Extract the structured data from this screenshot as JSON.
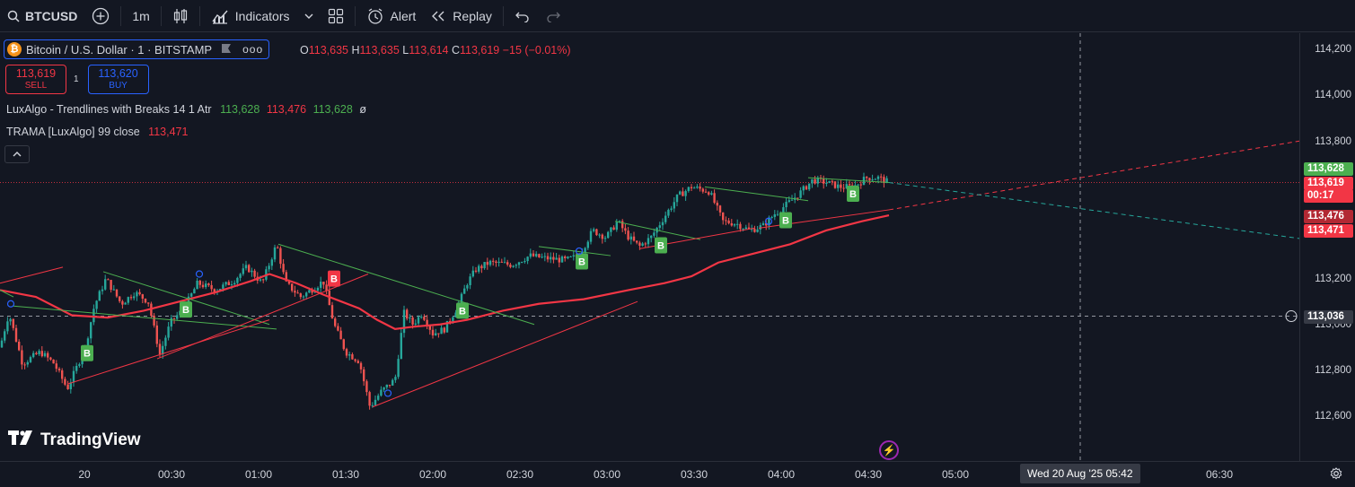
{
  "toolbar": {
    "symbol": "BTCUSD",
    "interval": "1m",
    "indicators_label": "Indicators",
    "alert_label": "Alert",
    "replay_label": "Replay"
  },
  "legend": {
    "symbol_title": "Bitcoin / U.S. Dollar · 1 · BITSTAMP",
    "ohlc": {
      "o_label": "O",
      "o": "113,635",
      "h_label": "H",
      "h": "113,635",
      "l_label": "L",
      "l": "113,614",
      "c_label": "C",
      "c": "113,619",
      "change": "−15 (−0.01%)"
    },
    "sell_price": "113,619",
    "sell_label": "SELL",
    "quantity": "1",
    "buy_price": "113,620",
    "buy_label": "BUY",
    "indicator1_name": "LuxAlgo - Trendlines with Breaks 14 1 Atr",
    "indicator1_v1": "113,628",
    "indicator1_v2": "113,476",
    "indicator1_v3": "113,628",
    "indicator1_v4": "ø",
    "indicator2_name": "TRAMA [LuxAlgo] 99 close",
    "indicator2_v1": "113,471",
    "brand": "TradingView"
  },
  "price_axis": {
    "ticks": [
      "114,200",
      "114,000",
      "113,800",
      "113,200",
      "113,000",
      "112,800",
      "112,600"
    ],
    "tags": [
      {
        "text": "113,628",
        "color": "#4caf50"
      },
      {
        "text": "113,619",
        "color": "#f23645"
      },
      {
        "text": "00:17",
        "color": "#f23645"
      },
      {
        "text": "113,476",
        "color": "#b22833"
      },
      {
        "text": "113,471",
        "color": "#f23645"
      },
      {
        "text": "113,036",
        "color": "#363a45"
      }
    ]
  },
  "time_axis": {
    "ticks": [
      "20",
      "00:30",
      "01:00",
      "01:30",
      "02:00",
      "02:30",
      "03:00",
      "03:30",
      "04:00",
      "04:30",
      "05:00",
      "06:30"
    ],
    "crosshair_label": "Wed 20 Aug '25   05:42"
  },
  "signals": {
    "break_up": "B",
    "break_down": "B"
  },
  "colors": {
    "up": "#26a69a",
    "down": "#ef5350",
    "trama": "#f23645",
    "trend_green": "#4caf50",
    "trend_red": "#f23645"
  },
  "icons": [
    "search-icon",
    "add-icon",
    "candles-icon",
    "indicators-icon",
    "layout-icon",
    "alert-icon",
    "replay-icon",
    "undo-icon",
    "redo-icon",
    "settings-icon"
  ]
}
